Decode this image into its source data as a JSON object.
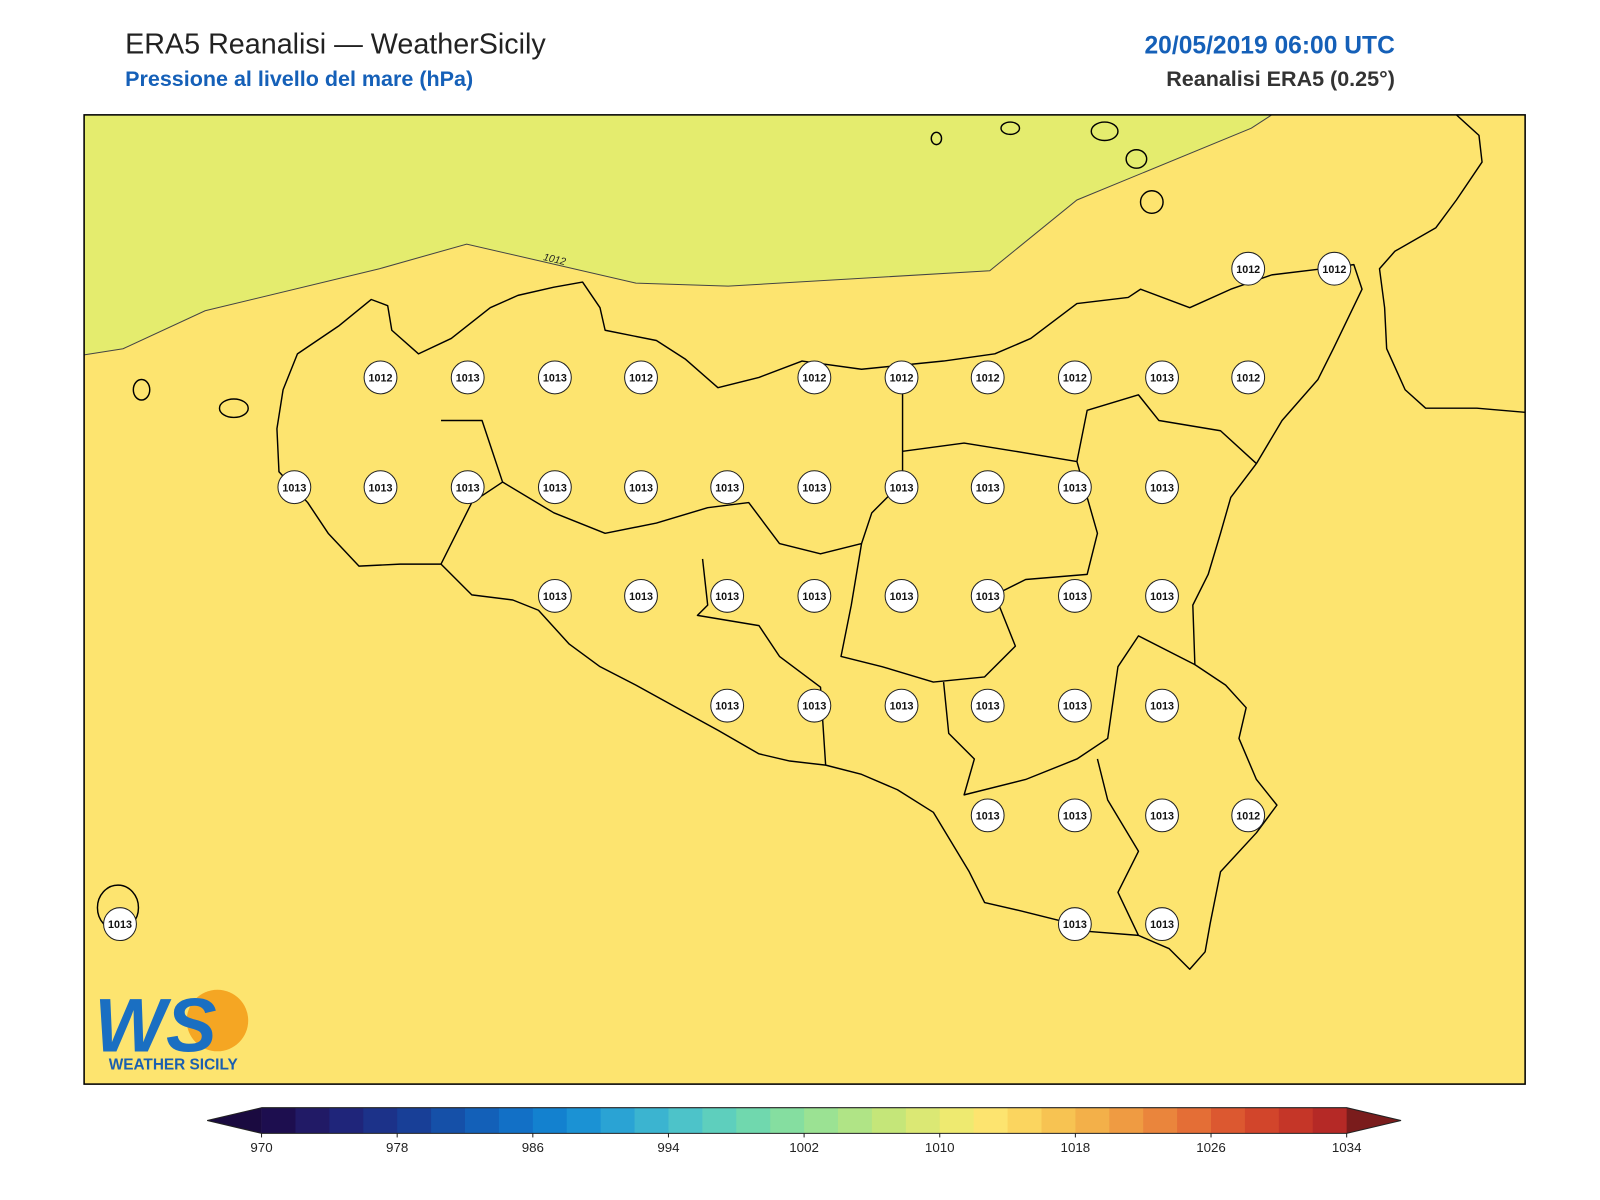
{
  "header": {
    "title": "ERA5 Reanalisi — WeatherSicily",
    "subtitle": "Pressione al livello del mare (hPa)",
    "date": "20/05/2019 06:00 UTC",
    "source": "Reanalisi ERA5 (0.25°)"
  },
  "map": {
    "contour_label": "1012",
    "sea_color": "#fde46f",
    "low_color": "#e4ec6e",
    "stations": [
      1012,
      1012,
      1012,
      1013,
      1013,
      1012,
      1012,
      1012,
      1012,
      1012,
      1013,
      1012,
      1013,
      1013,
      1013,
      1013,
      1013,
      1013,
      1013,
      1013,
      1013,
      1013,
      1013,
      1013,
      1013,
      1013,
      1013,
      1013,
      1013,
      1013,
      1013,
      1013,
      1013,
      1013,
      1013,
      1013,
      1013,
      1013,
      1013,
      1013,
      1012,
      1013,
      1013,
      1013
    ]
  },
  "logo": {
    "mark": "WS",
    "name": "WEATHER SICILY"
  },
  "colorbar": {
    "ticks": [
      970,
      978,
      986,
      994,
      1002,
      1010,
      1018,
      1026,
      1034
    ],
    "colors": [
      "#1d0e4f",
      "#211a66",
      "#1f257a",
      "#1c3289",
      "#183f97",
      "#1550a8",
      "#1360b8",
      "#1270c6",
      "#1381cf",
      "#1b92d4",
      "#2aa3d4",
      "#3bb4d0",
      "#4dc3c9",
      "#5ecfbd",
      "#70d8ae",
      "#85dea0",
      "#9be293",
      "#b0e486",
      "#c5e679",
      "#dbe874",
      "#eeea70",
      "#fde46f",
      "#fbd55f",
      "#f7c352",
      "#f3b049",
      "#ef9b42",
      "#ea853c",
      "#e46e36",
      "#dc5830",
      "#d2452b",
      "#c53628",
      "#b52926"
    ],
    "extend_low": "#1a0a40",
    "extend_high": "#7a1c1c"
  }
}
